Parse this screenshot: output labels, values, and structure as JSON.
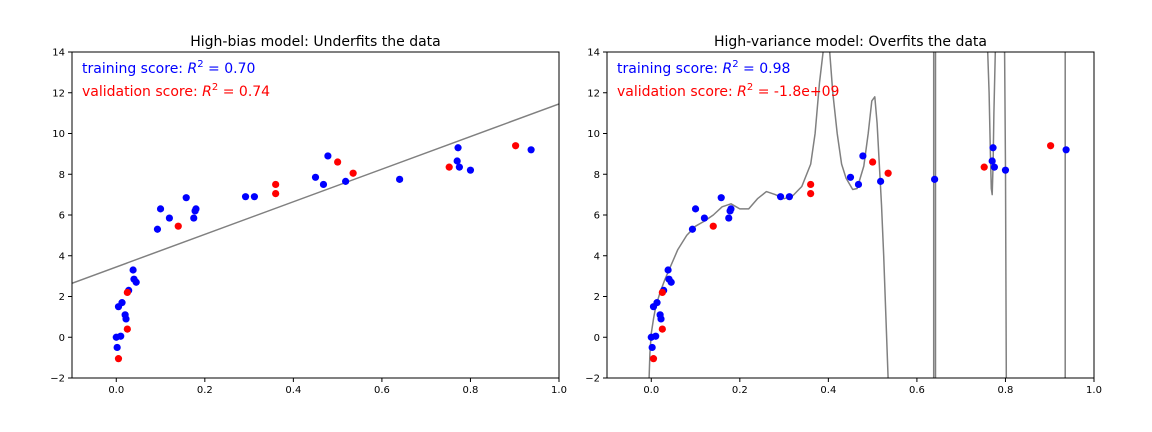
{
  "chart_data": [
    {
      "type": "scatter",
      "title": "High-bias model: Underfits the data",
      "xlim": [
        -0.1,
        1.0
      ],
      "ylim": [
        -2,
        14
      ],
      "xticks": [
        0.0,
        0.2,
        0.4,
        0.6,
        0.8,
        1.0
      ],
      "yticks": [
        -2,
        0,
        2,
        4,
        6,
        8,
        10,
        12,
        14
      ],
      "xtick_labels": [
        "0.0",
        "0.2",
        "0.4",
        "0.6",
        "0.8",
        "1.0"
      ],
      "ytick_labels": [
        "−2",
        "0",
        "2",
        "4",
        "6",
        "8",
        "10",
        "12",
        "14"
      ],
      "grid": false,
      "annotations": [
        {
          "prefix": "training score: ",
          "value": " = 0.70",
          "color": "#0000ff"
        },
        {
          "prefix": "validation score: ",
          "value": " = 0.74",
          "color": "#ff0000"
        }
      ],
      "series": [
        {
          "color": "#0000ff",
          "points": [
            [
              0.0,
              0.0
            ],
            [
              0.002,
              -0.5
            ],
            [
              0.005,
              1.5
            ],
            [
              0.01,
              0.05
            ],
            [
              0.013,
              1.7
            ],
            [
              0.02,
              1.1
            ],
            [
              0.022,
              0.9
            ],
            [
              0.028,
              2.3
            ],
            [
              0.038,
              3.3
            ],
            [
              0.04,
              2.85
            ],
            [
              0.045,
              2.7
            ],
            [
              0.093,
              5.3
            ],
            [
              0.1,
              6.3
            ],
            [
              0.12,
              5.85
            ],
            [
              0.158,
              6.85
            ],
            [
              0.175,
              5.85
            ],
            [
              0.178,
              6.2
            ],
            [
              0.18,
              6.3
            ],
            [
              0.292,
              6.9
            ],
            [
              0.312,
              6.9
            ],
            [
              0.45,
              7.85
            ],
            [
              0.468,
              7.5
            ],
            [
              0.478,
              8.9
            ],
            [
              0.518,
              7.65
            ],
            [
              0.64,
              7.75
            ],
            [
              0.77,
              8.65
            ],
            [
              0.772,
              9.3
            ],
            [
              0.775,
              8.35
            ],
            [
              0.8,
              8.2
            ],
            [
              0.937,
              9.2
            ]
          ]
        },
        {
          "color": "#ff0000",
          "points": [
            [
              0.005,
              -1.05
            ],
            [
              0.025,
              0.4
            ],
            [
              0.025,
              2.2
            ],
            [
              0.14,
              5.45
            ],
            [
              0.36,
              7.5
            ],
            [
              0.36,
              7.05
            ],
            [
              0.5,
              8.6
            ],
            [
              0.535,
              8.05
            ],
            [
              0.752,
              8.35
            ],
            [
              0.902,
              9.4
            ]
          ]
        }
      ],
      "model": {
        "kind": "linear",
        "color": "#808080",
        "intercept": 3.45,
        "slope": 8.0
      }
    },
    {
      "type": "scatter",
      "title": "High-variance model: Overfits the data",
      "xlim": [
        -0.1,
        1.0
      ],
      "ylim": [
        -2,
        14
      ],
      "xticks": [
        0.0,
        0.2,
        0.4,
        0.6,
        0.8,
        1.0
      ],
      "yticks": [
        -2,
        0,
        2,
        4,
        6,
        8,
        10,
        12,
        14
      ],
      "xtick_labels": [
        "0.0",
        "0.2",
        "0.4",
        "0.6",
        "0.8",
        "1.0"
      ],
      "ytick_labels": [
        "−2",
        "0",
        "2",
        "4",
        "6",
        "8",
        "10",
        "12",
        "14"
      ],
      "grid": false,
      "annotations": [
        {
          "prefix": "training score: ",
          "value": " = 0.98",
          "color": "#0000ff"
        },
        {
          "prefix": "validation score: ",
          "value": " = -1.8e+09",
          "color": "#ff0000"
        }
      ],
      "series": [
        {
          "color": "#0000ff",
          "points": [
            [
              0.0,
              0.0
            ],
            [
              0.002,
              -0.5
            ],
            [
              0.005,
              1.5
            ],
            [
              0.01,
              0.05
            ],
            [
              0.013,
              1.7
            ],
            [
              0.02,
              1.1
            ],
            [
              0.022,
              0.9
            ],
            [
              0.028,
              2.3
            ],
            [
              0.038,
              3.3
            ],
            [
              0.04,
              2.85
            ],
            [
              0.045,
              2.7
            ],
            [
              0.093,
              5.3
            ],
            [
              0.1,
              6.3
            ],
            [
              0.12,
              5.85
            ],
            [
              0.158,
              6.85
            ],
            [
              0.175,
              5.85
            ],
            [
              0.178,
              6.2
            ],
            [
              0.18,
              6.3
            ],
            [
              0.292,
              6.9
            ],
            [
              0.312,
              6.9
            ],
            [
              0.45,
              7.85
            ],
            [
              0.468,
              7.5
            ],
            [
              0.478,
              8.9
            ],
            [
              0.518,
              7.65
            ],
            [
              0.64,
              7.75
            ],
            [
              0.77,
              8.65
            ],
            [
              0.772,
              9.3
            ],
            [
              0.775,
              8.35
            ],
            [
              0.8,
              8.2
            ],
            [
              0.937,
              9.2
            ]
          ]
        },
        {
          "color": "#ff0000",
          "points": [
            [
              0.005,
              -1.05
            ],
            [
              0.025,
              0.4
            ],
            [
              0.025,
              2.2
            ],
            [
              0.14,
              5.45
            ],
            [
              0.36,
              7.5
            ],
            [
              0.36,
              7.05
            ],
            [
              0.5,
              8.6
            ],
            [
              0.535,
              8.05
            ],
            [
              0.752,
              8.35
            ],
            [
              0.902,
              9.4
            ]
          ]
        }
      ],
      "model": {
        "kind": "curve",
        "color": "#808080",
        "segments": [
          [
            [
              -0.005,
              -2.0
            ],
            [
              -0.003,
              -0.8
            ],
            [
              0.0,
              0.2
            ],
            [
              0.005,
              0.9
            ],
            [
              0.01,
              1.5
            ],
            [
              0.02,
              2.2
            ],
            [
              0.03,
              2.8
            ],
            [
              0.04,
              3.3
            ],
            [
              0.06,
              4.3
            ],
            [
              0.08,
              5.0
            ],
            [
              0.1,
              5.45
            ],
            [
              0.12,
              5.7
            ],
            [
              0.14,
              6.0
            ],
            [
              0.16,
              6.4
            ],
            [
              0.18,
              6.55
            ],
            [
              0.2,
              6.3
            ],
            [
              0.22,
              6.3
            ],
            [
              0.24,
              6.8
            ],
            [
              0.26,
              7.15
            ],
            [
              0.28,
              7.0
            ],
            [
              0.3,
              6.8
            ],
            [
              0.32,
              6.95
            ],
            [
              0.34,
              7.4
            ],
            [
              0.36,
              8.5
            ],
            [
              0.37,
              10.0
            ],
            [
              0.38,
              12.5
            ],
            [
              0.388,
              14.0
            ]
          ],
          [
            [
              0.403,
              14.0
            ],
            [
              0.41,
              12.0
            ],
            [
              0.42,
              10.0
            ],
            [
              0.43,
              8.5
            ],
            [
              0.44,
              7.8
            ],
            [
              0.455,
              7.25
            ],
            [
              0.465,
              7.3
            ],
            [
              0.48,
              8.4
            ],
            [
              0.49,
              10.0
            ],
            [
              0.498,
              11.6
            ],
            [
              0.505,
              11.8
            ],
            [
              0.51,
              10.5
            ],
            [
              0.515,
              8.5
            ],
            [
              0.52,
              6.5
            ],
            [
              0.525,
              4.0
            ],
            [
              0.53,
              1.0
            ],
            [
              0.535,
              -2.0
            ]
          ],
          [
            [
              0.638,
              -2.0
            ],
            [
              0.638,
              14.0
            ]
          ],
          [
            [
              0.642,
              14.0
            ],
            [
              0.642,
              -2.0
            ]
          ],
          [
            [
              0.76,
              14.0
            ],
            [
              0.763,
              12.0
            ],
            [
              0.766,
              9.0
            ],
            [
              0.768,
              7.3
            ],
            [
              0.77,
              7.0
            ],
            [
              0.772,
              8.5
            ],
            [
              0.774,
              11.0
            ],
            [
              0.777,
              14.0
            ]
          ],
          [
            [
              0.798,
              14.0
            ],
            [
              0.8,
              8.2
            ],
            [
              0.802,
              -2.0
            ]
          ],
          [
            [
              0.935,
              -2.0
            ],
            [
              0.935,
              14.0
            ]
          ]
        ]
      }
    }
  ]
}
